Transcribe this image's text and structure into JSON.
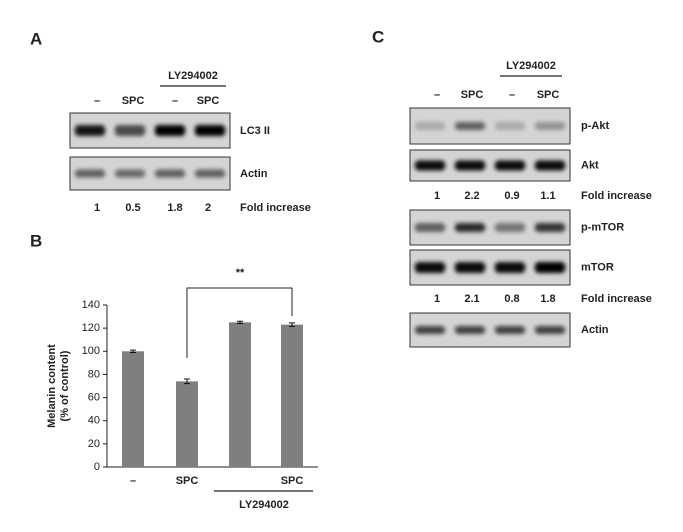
{
  "panel_a": {
    "label": "A",
    "lanes": [
      "–",
      "SPC",
      "–",
      "SPC"
    ],
    "treatment": "LY294002",
    "blots": [
      "LC3 II",
      "Actin"
    ],
    "fold_label": "Fold increase",
    "fold_values": [
      1,
      0.5,
      1.8,
      2
    ]
  },
  "panel_b": {
    "label": "B"
  },
  "chart_data": {
    "type": "bar",
    "y_label": [
      "Melanin content",
      "(% of control)"
    ],
    "categories": [
      "–",
      "SPC",
      null,
      "SPC"
    ],
    "values": [
      100,
      74,
      125,
      123
    ],
    "errors": [
      1,
      2,
      1,
      1.5
    ],
    "color": "#7f7f7f",
    "ylim": [
      0,
      140
    ],
    "yticks": [
      0,
      20,
      40,
      60,
      80,
      100,
      120,
      140
    ],
    "group_label": "LY294002",
    "annotation": "**"
  },
  "panel_c": {
    "label": "C",
    "lanes": [
      "–",
      "SPC",
      "–",
      "SPC"
    ],
    "treatment": "LY294002",
    "blots": [
      "p-Akt",
      "Akt",
      "p-mTOR",
      "mTOR",
      "Actin"
    ],
    "fold_label": "Fold increase",
    "fold_rows": [
      [
        1,
        2.2,
        0.9,
        1.1
      ],
      [
        1,
        2.1,
        0.8,
        1.8
      ]
    ]
  }
}
